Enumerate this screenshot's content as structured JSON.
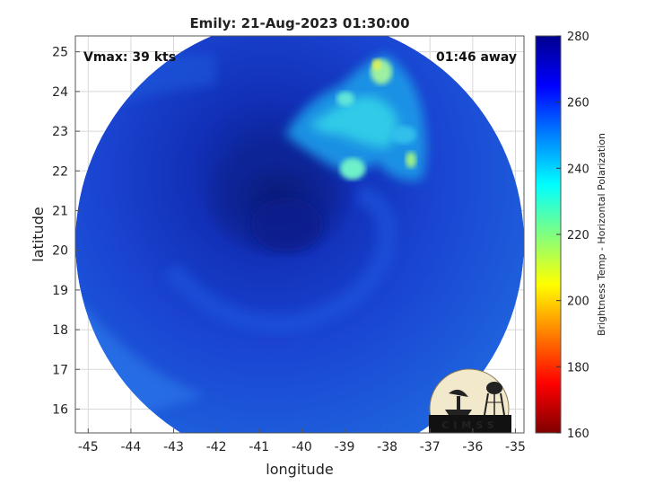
{
  "figure": {
    "title": "Emily: 21-Aug-2023 01:30:00",
    "vmax_text": "Vmax: 39 kts",
    "time_away_text": "01:46 away",
    "xlabel": "longitude",
    "ylabel": "latitude",
    "x_ticks": [
      "-45",
      "-44",
      "-43",
      "-42",
      "-41",
      "-40",
      "-39",
      "-38",
      "-37",
      "-36",
      "-35"
    ],
    "y_ticks": [
      "16",
      "17",
      "18",
      "19",
      "20",
      "21",
      "22",
      "23",
      "24",
      "25"
    ],
    "xlim": [
      -45.3,
      -34.8
    ],
    "ylim": [
      15.4,
      25.4
    ],
    "grid": true
  },
  "colorbar": {
    "label": "Brightness Temp - Horizontal Polarization",
    "ticks": [
      "280",
      "260",
      "240",
      "220",
      "200",
      "180",
      "160"
    ],
    "range": [
      160,
      280
    ],
    "colormap": "jet",
    "colors": [
      "#800000",
      "#ff0000",
      "#ff8000",
      "#ffff00",
      "#80ff80",
      "#00ffff",
      "#0080ff",
      "#0000ff",
      "#00008f"
    ]
  },
  "logo": {
    "text": "CIMSS"
  },
  "colors": {
    "storm_core": "#0a1f8a",
    "background_blue": "#1e4fd6",
    "warm_region": "#1a9ae8",
    "cold_cloud": "#40e8e0"
  }
}
